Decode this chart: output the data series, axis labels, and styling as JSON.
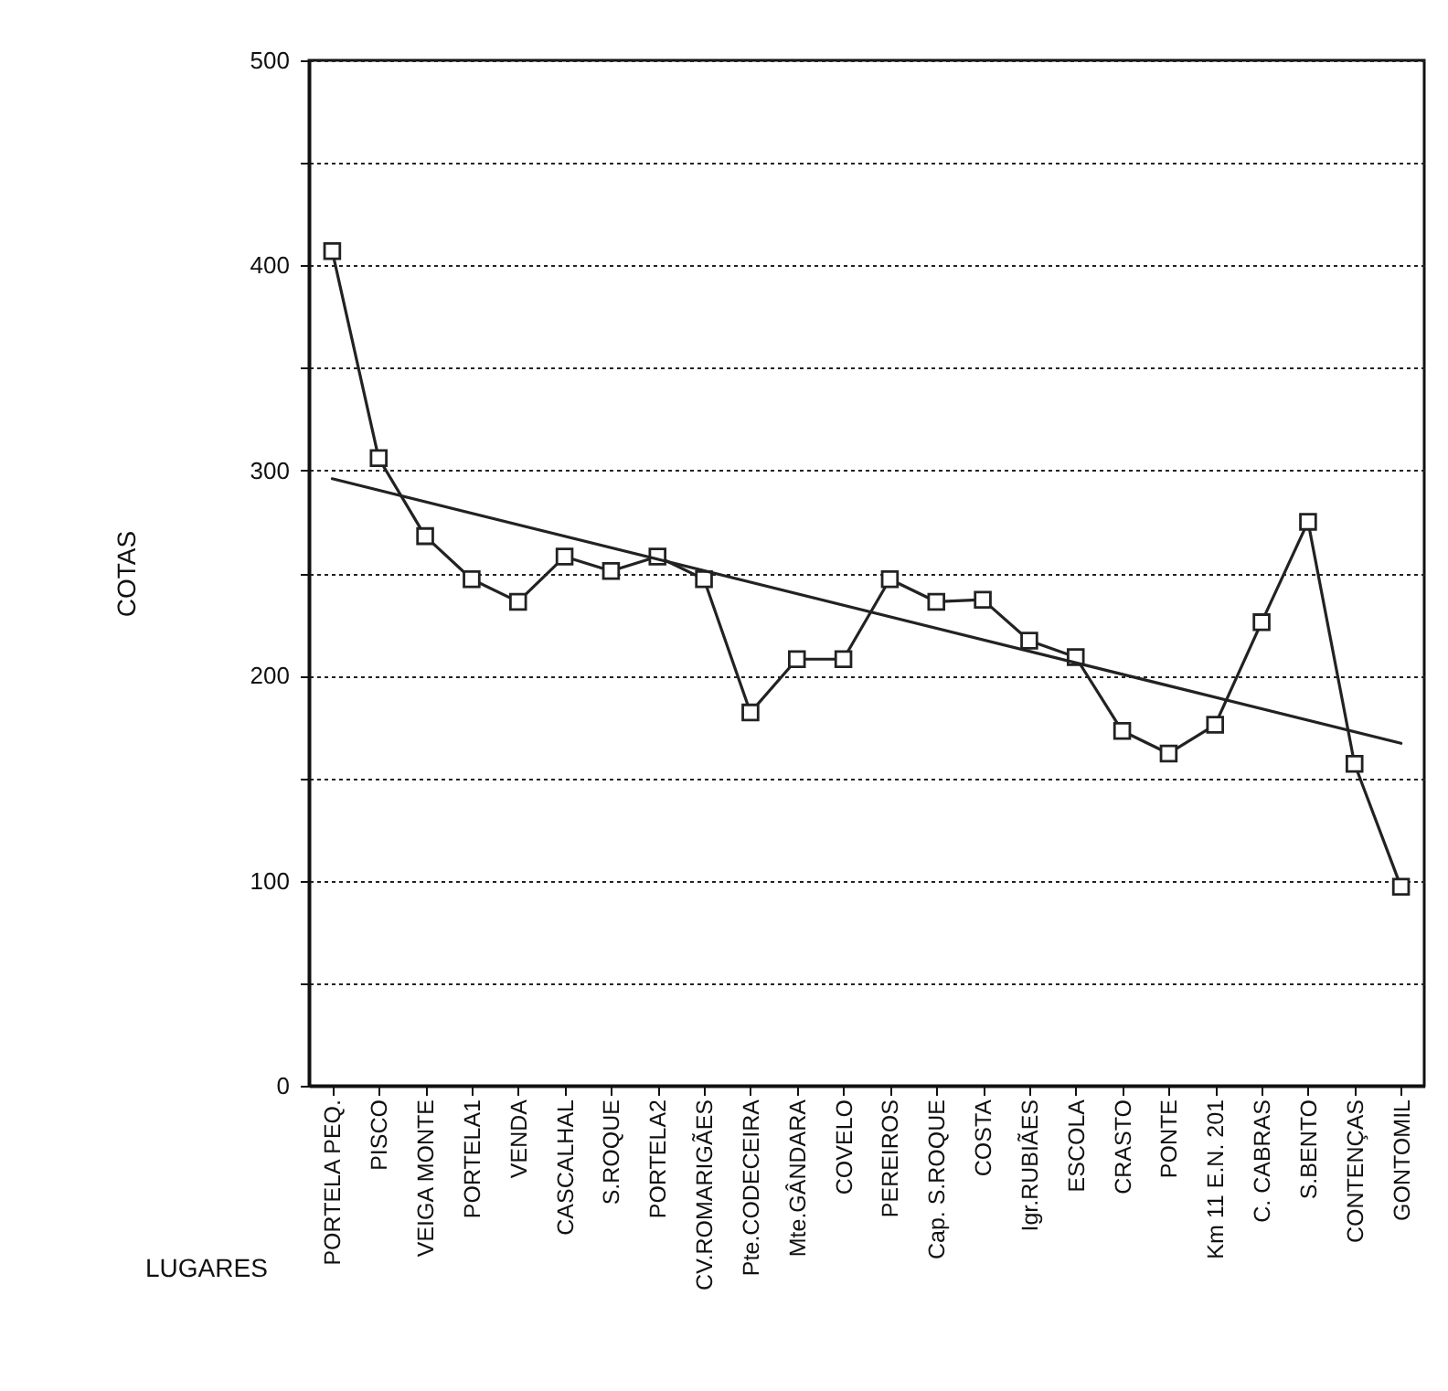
{
  "chart_data": {
    "type": "line",
    "xlabel": "LUGARES",
    "ylabel": "COTAS",
    "categories": [
      "PORTELA PEQ.",
      "PISCO",
      "VEIGA MONTE",
      "PORTELA1",
      "VENDA",
      "CASCALHAL",
      "S.ROQUE",
      "PORTELA2",
      "CV.ROMARIGÃES",
      "Pte.CODECEIRA",
      "Mte.GÂNDARA",
      "COVELO",
      "PEREIROS",
      "Cap. S.ROQUE",
      "COSTA",
      "Igr.RUBIÃES",
      "ESCOLA",
      "CRASTO",
      "PONTE",
      "Km 11 E.N. 201",
      "C. CABRAS",
      "S.BENTO",
      "CONTENÇAS",
      "GONTOMIL"
    ],
    "series": [
      {
        "color": "#222222",
        "marker": "square",
        "values": [
          407,
          306,
          268,
          247,
          236,
          258,
          251,
          258,
          247,
          182,
          208,
          208,
          247,
          236,
          237,
          217,
          209,
          173,
          162,
          176,
          226,
          275,
          157,
          97
        ]
      },
      {
        "type": "line",
        "color": "#222222",
        "marker": "none",
        "x": [
          "PORTELA PEQ.",
          "GONTOMIL"
        ],
        "values": [
          296,
          167
        ]
      }
    ],
    "ylim": [
      0,
      500
    ],
    "yticks": [
      0,
      {
        "value": 50,
        "label": null
      },
      100,
      {
        "value": 150,
        "label": null
      },
      200,
      {
        "value": 250,
        "label": null
      },
      300,
      {
        "value": 350,
        "label": null
      },
      400,
      {
        "value": 450,
        "label": null
      },
      500
    ],
    "grid": "y",
    "line_style": "solid"
  }
}
